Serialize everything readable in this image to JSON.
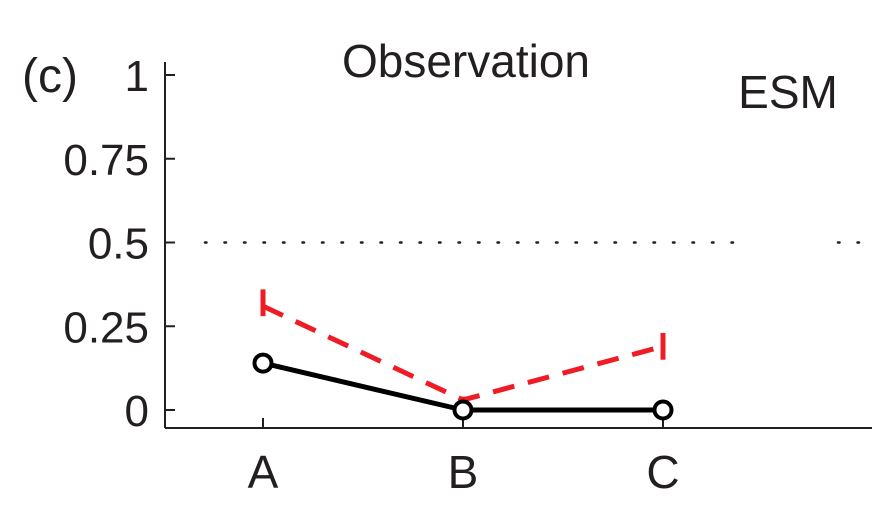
{
  "chart_data": {
    "type": "line",
    "panel_label": "(c)",
    "annotation_left": "Observation",
    "annotation_right": "ESM",
    "categories": [
      "A",
      "B",
      "C"
    ],
    "ylim": [
      -0.05,
      1.02
    ],
    "yticks": [
      0,
      0.25,
      0.5,
      0.75,
      1
    ],
    "ytick_labels": [
      "0",
      "0.25",
      "0.5",
      "0.75",
      "1"
    ],
    "reference_line": {
      "y": 0.5,
      "style": "dotted"
    },
    "series": [
      {
        "color": "#000000",
        "style": "solid",
        "marker": "circle",
        "values": [
          0.14,
          0.0,
          0.0
        ]
      },
      {
        "color": "#ee1c25",
        "style": "dashed",
        "marker": "none",
        "values": [
          0.31,
          0.03,
          0.19
        ],
        "error_low": [
          0.28,
          0.01,
          0.15
        ],
        "error_high": [
          0.36,
          0.04,
          0.23
        ]
      }
    ],
    "grid": false,
    "legend": "none"
  }
}
